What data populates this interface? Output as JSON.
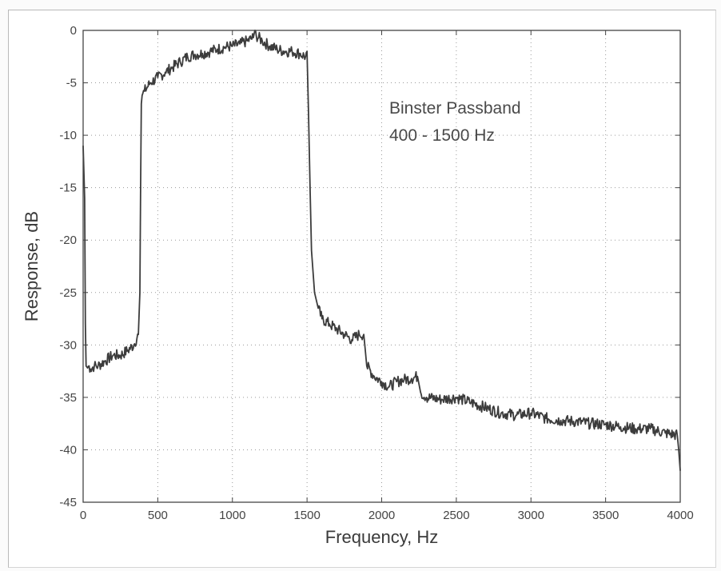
{
  "chart_data": {
    "type": "line",
    "title": "",
    "xlabel": "Frequency, Hz",
    "ylabel": "Response, dB",
    "xlim": [
      0,
      4000
    ],
    "ylim": [
      -45,
      0
    ],
    "x_ticks": [
      "0",
      "500",
      "1000",
      "1500",
      "2000",
      "2500",
      "3000",
      "3500",
      "4000"
    ],
    "y_ticks": [
      "0",
      "-5",
      "-10",
      "-15",
      "-20",
      "-25",
      "-30",
      "-35",
      "-40",
      "-45"
    ],
    "grid": true,
    "line_color": "#3c3c3c",
    "annotation": {
      "line1": "Binster Passband",
      "line2": "400 - 1500 Hz"
    },
    "series": [
      {
        "x": [
          0,
          10,
          15,
          20,
          30,
          40,
          50,
          75,
          100,
          150,
          200,
          250,
          300,
          340,
          370,
          380,
          385,
          390,
          395,
          400,
          410,
          450,
          500,
          550,
          600,
          650,
          700,
          750,
          800,
          850,
          900,
          950,
          1000,
          1050,
          1100,
          1140,
          1150,
          1160,
          1200,
          1250,
          1300,
          1350,
          1400,
          1450,
          1490,
          1500,
          1510,
          1520,
          1530,
          1540,
          1550,
          1575,
          1600,
          1650,
          1700,
          1750,
          1800,
          1850,
          1880,
          1890,
          1900,
          1950,
          2000,
          2050,
          2100,
          2150,
          2200,
          2240,
          2260,
          2300,
          2400,
          2500,
          2600,
          2700,
          2800,
          2900,
          3000,
          3100,
          3200,
          3300,
          3400,
          3500,
          3600,
          3700,
          3800,
          3900,
          3980,
          3990,
          4000
        ],
        "y": [
          -11,
          -16,
          -28,
          -32,
          -32.2,
          -32,
          -32.3,
          -32,
          -32,
          -31.5,
          -31,
          -31,
          -30.5,
          -30,
          -29,
          -25,
          -15,
          -7,
          -6.2,
          -6,
          -5.8,
          -5,
          -4.5,
          -4,
          -3.5,
          -3,
          -2.5,
          -2.3,
          -2.2,
          -2,
          -1.8,
          -1.6,
          -1.5,
          -1.3,
          -1,
          -0.7,
          0,
          -0.5,
          -1,
          -1.5,
          -1.8,
          -2,
          -2,
          -2.2,
          -2.5,
          -2,
          -8,
          -15,
          -21,
          -23,
          -25,
          -26.5,
          -27.5,
          -28,
          -28.5,
          -29,
          -29.5,
          -29,
          -29,
          -30.5,
          -32,
          -33,
          -33.5,
          -34,
          -33.5,
          -33.3,
          -33.2,
          -33,
          -34.5,
          -35,
          -35.2,
          -35,
          -35.5,
          -36,
          -36.5,
          -36.7,
          -36.5,
          -37,
          -37.2,
          -37.3,
          -37.5,
          -37.6,
          -37.8,
          -38,
          -38,
          -38.4,
          -38.6,
          -40,
          -42
        ]
      }
    ]
  }
}
